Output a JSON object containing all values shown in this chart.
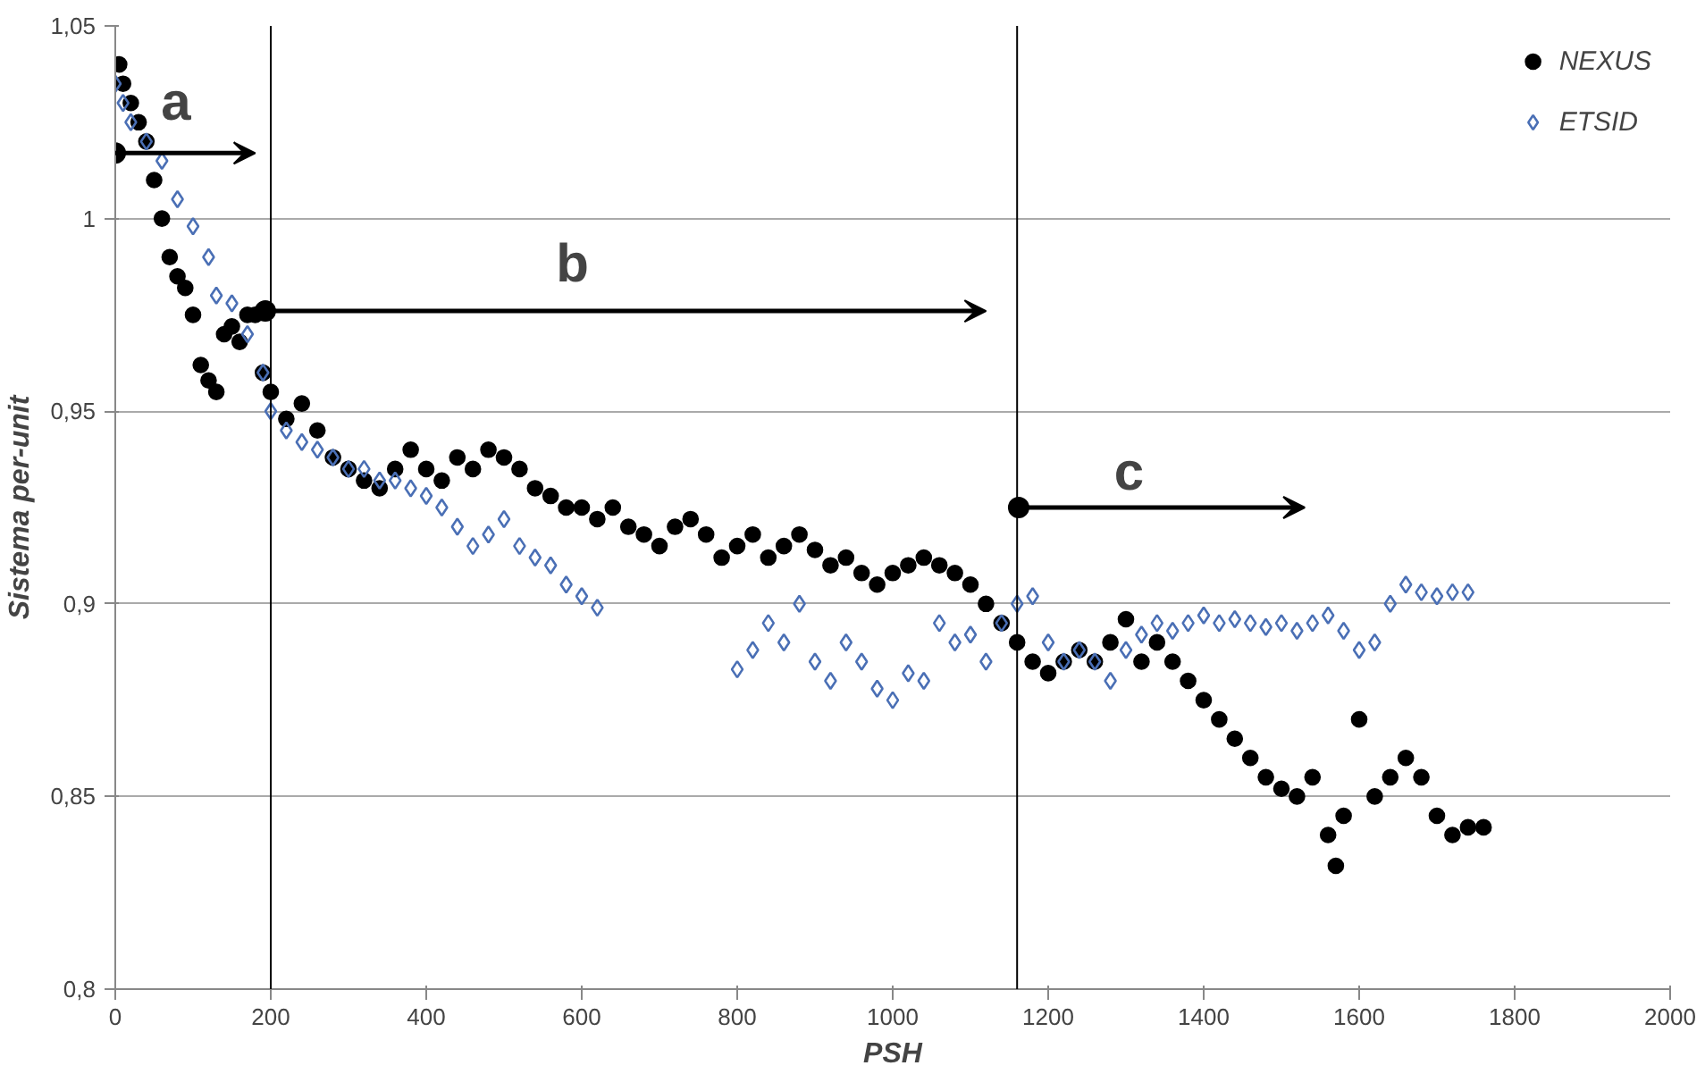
{
  "chart_data": {
    "type": "scatter",
    "xlabel": "PSH",
    "ylabel": "Sistema per-unit",
    "xlim": [
      0,
      2000
    ],
    "xticks": [
      0,
      200,
      400,
      600,
      800,
      1000,
      1200,
      1400,
      1600,
      1800,
      2000
    ],
    "ylim": [
      0.8,
      1.05
    ],
    "yticks": [
      {
        "value": 0.8,
        "label": "0,8"
      },
      {
        "value": 0.85,
        "label": "0,85"
      },
      {
        "value": 0.9,
        "label": "0,9"
      },
      {
        "value": 0.95,
        "label": "0,95"
      },
      {
        "value": 1,
        "label": "1"
      },
      {
        "value": 1.05,
        "label": "1,05"
      }
    ],
    "grid": "y",
    "legend": "top right",
    "ref_lines": [
      {
        "axis": "x",
        "value": 200,
        "color": "#000000"
      },
      {
        "axis": "x",
        "value": 1160,
        "color": "#000000"
      }
    ],
    "annotations": [
      "a",
      "b",
      "c"
    ],
    "series": [
      {
        "name": "NEXUS",
        "color": "#000000",
        "marker": "circle",
        "x": [
          5,
          10,
          20,
          30,
          40,
          50,
          60,
          70,
          80,
          90,
          100,
          110,
          120,
          130,
          140,
          150,
          160,
          170,
          180,
          190,
          200,
          220,
          240,
          260,
          280,
          300,
          320,
          340,
          360,
          380,
          400,
          420,
          440,
          460,
          480,
          500,
          520,
          540,
          560,
          580,
          600,
          620,
          640,
          660,
          680,
          700,
          720,
          740,
          760,
          780,
          800,
          820,
          840,
          860,
          880,
          900,
          920,
          940,
          960,
          980,
          1000,
          1020,
          1040,
          1060,
          1080,
          1100,
          1120,
          1140,
          1160,
          1180,
          1200,
          1220,
          1240,
          1260,
          1280,
          1300,
          1320,
          1340,
          1360,
          1380,
          1400,
          1420,
          1440,
          1460,
          1480,
          1500,
          1520,
          1540,
          1560,
          1570,
          1580,
          1600,
          1620,
          1640,
          1660,
          1680,
          1700,
          1720,
          1740,
          1760
        ],
        "values": [
          1.04,
          1.035,
          1.03,
          1.025,
          1.02,
          1.01,
          1.0,
          0.99,
          0.985,
          0.982,
          0.975,
          0.962,
          0.958,
          0.955,
          0.97,
          0.972,
          0.968,
          0.975,
          0.975,
          0.96,
          0.955,
          0.948,
          0.952,
          0.945,
          0.938,
          0.935,
          0.932,
          0.93,
          0.935,
          0.94,
          0.935,
          0.932,
          0.938,
          0.935,
          0.94,
          0.938,
          0.935,
          0.93,
          0.928,
          0.925,
          0.925,
          0.922,
          0.925,
          0.92,
          0.918,
          0.915,
          0.92,
          0.922,
          0.918,
          0.912,
          0.915,
          0.918,
          0.912,
          0.915,
          0.918,
          0.914,
          0.91,
          0.912,
          0.908,
          0.905,
          0.908,
          0.91,
          0.912,
          0.91,
          0.908,
          0.905,
          0.9,
          0.895,
          0.89,
          0.885,
          0.882,
          0.885,
          0.888,
          0.885,
          0.89,
          0.896,
          0.885,
          0.89,
          0.885,
          0.88,
          0.875,
          0.87,
          0.865,
          0.86,
          0.855,
          0.852,
          0.85,
          0.855,
          0.84,
          0.832,
          0.845,
          0.87,
          0.85,
          0.855,
          0.86,
          0.855,
          0.845,
          0.84,
          0.842,
          0.842
        ]
      },
      {
        "name": "ETSID",
        "color": "#4a6fb5",
        "marker": "diamond",
        "x": [
          0,
          10,
          20,
          40,
          60,
          80,
          100,
          120,
          130,
          150,
          170,
          190,
          200,
          220,
          240,
          260,
          280,
          300,
          320,
          340,
          360,
          380,
          400,
          420,
          440,
          460,
          480,
          500,
          520,
          540,
          560,
          580,
          600,
          620,
          800,
          820,
          840,
          860,
          880,
          900,
          920,
          940,
          960,
          980,
          1000,
          1020,
          1040,
          1060,
          1080,
          1100,
          1120,
          1140,
          1160,
          1180,
          1200,
          1220,
          1240,
          1260,
          1280,
          1300,
          1320,
          1340,
          1360,
          1380,
          1400,
          1420,
          1440,
          1460,
          1480,
          1500,
          1520,
          1540,
          1560,
          1580,
          1600,
          1620,
          1640,
          1660,
          1680,
          1700,
          1720,
          1740
        ],
        "values": [
          1.035,
          1.03,
          1.025,
          1.02,
          1.015,
          1.005,
          0.998,
          0.99,
          0.98,
          0.978,
          0.97,
          0.96,
          0.95,
          0.945,
          0.942,
          0.94,
          0.938,
          0.935,
          0.935,
          0.932,
          0.932,
          0.93,
          0.928,
          0.925,
          0.92,
          0.915,
          0.918,
          0.922,
          0.915,
          0.912,
          0.91,
          0.905,
          0.902,
          0.899,
          0.883,
          0.888,
          0.895,
          0.89,
          0.9,
          0.885,
          0.88,
          0.89,
          0.885,
          0.878,
          0.875,
          0.882,
          0.88,
          0.895,
          0.89,
          0.892,
          0.885,
          0.895,
          0.9,
          0.902,
          0.89,
          0.885,
          0.888,
          0.885,
          0.88,
          0.888,
          0.892,
          0.895,
          0.893,
          0.895,
          0.897,
          0.895,
          0.896,
          0.895,
          0.894,
          0.895,
          0.893,
          0.895,
          0.897,
          0.893,
          0.888,
          0.89,
          0.9,
          0.905,
          0.903,
          0.902,
          0.903,
          0.903
        ]
      }
    ]
  }
}
